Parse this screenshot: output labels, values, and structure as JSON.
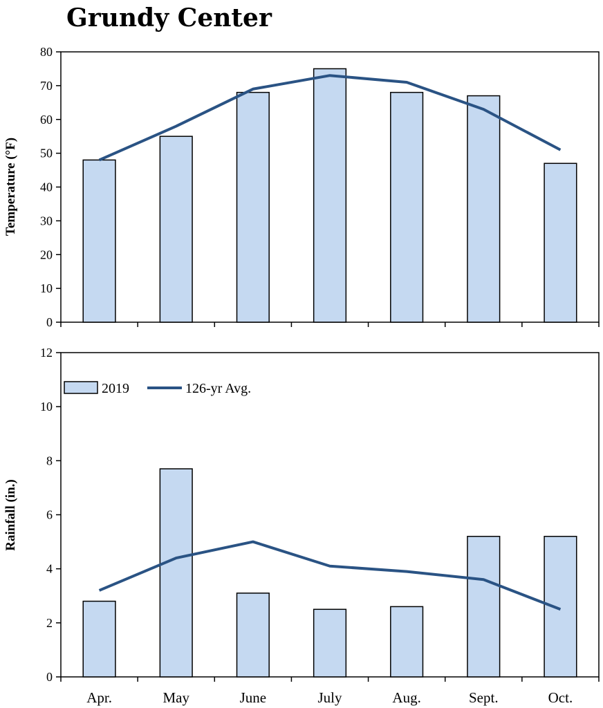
{
  "title": "Grundy Center",
  "colors": {
    "bar_fill": "#c5d9f1",
    "bar_stroke": "#000000",
    "line": "#2a5384"
  },
  "chart_data": [
    {
      "type": "bar",
      "categories": [
        "Apr.",
        "May",
        "June",
        "July",
        "Aug.",
        "Sept.",
        "Oct."
      ],
      "ylabel": "Temperature (°F)",
      "ylim": [
        0,
        80
      ],
      "yticks": [
        0,
        10,
        20,
        30,
        40,
        50,
        60,
        70,
        80
      ],
      "series": [
        {
          "name": "2019",
          "kind": "bar",
          "values": [
            48,
            55,
            68,
            75,
            68,
            67,
            47
          ]
        },
        {
          "name": "126-yr Avg.",
          "kind": "line",
          "values": [
            48,
            58,
            69,
            73,
            71,
            63,
            51
          ]
        }
      ]
    },
    {
      "type": "bar",
      "categories": [
        "Apr.",
        "May",
        "June",
        "July",
        "Aug.",
        "Sept.",
        "Oct."
      ],
      "ylabel": "Rainfall (in.)",
      "ylim": [
        0,
        12
      ],
      "yticks": [
        0,
        2,
        4,
        6,
        8,
        10,
        12
      ],
      "legend": "top-left",
      "series": [
        {
          "name": "2019",
          "kind": "bar",
          "values": [
            2.8,
            7.7,
            3.1,
            2.5,
            2.6,
            5.2,
            5.2
          ]
        },
        {
          "name": "126-yr Avg.",
          "kind": "line",
          "values": [
            3.2,
            4.4,
            5.0,
            4.1,
            3.9,
            3.6,
            2.5
          ]
        }
      ]
    }
  ]
}
